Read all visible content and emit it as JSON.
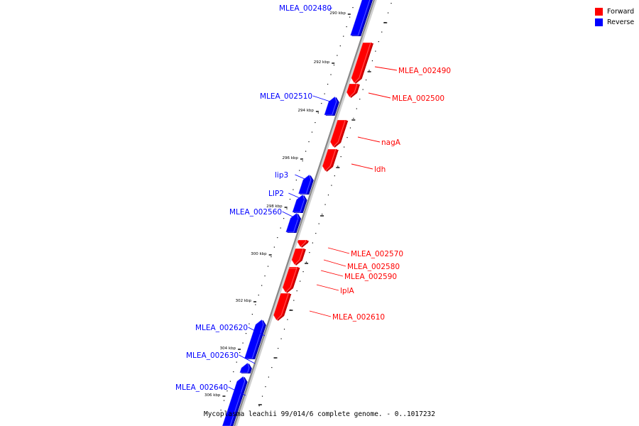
{
  "caption": "Mycoplasma leachii 99/014/6 complete genome. - 0..1017232",
  "colors": {
    "forward": "#ff0000",
    "reverse": "#0000ff",
    "backbone": "#888888"
  },
  "legend": [
    {
      "label": "Forward",
      "color": "#ff0000"
    },
    {
      "label": "Reverse",
      "color": "#0000ff"
    }
  ],
  "ticks": [
    {
      "label": "290 kbp"
    },
    {
      "label": "292 kbp"
    },
    {
      "label": "294 kbp"
    },
    {
      "label": "296 kbp"
    },
    {
      "label": "298 kbp"
    },
    {
      "label": "300 kbp"
    },
    {
      "label": "302 kbp"
    },
    {
      "label": "304 kbp"
    },
    {
      "label": "306 kbp"
    }
  ],
  "genes": [
    {
      "name": "MLEA_002480",
      "strand": "reverse"
    },
    {
      "name": "MLEA_002490",
      "strand": "forward"
    },
    {
      "name": "MLEA_002500",
      "strand": "forward"
    },
    {
      "name": "MLEA_002510",
      "strand": "reverse"
    },
    {
      "name": "nagA",
      "strand": "forward"
    },
    {
      "name": "ldh",
      "strand": "forward"
    },
    {
      "name": "lip3",
      "strand": "reverse"
    },
    {
      "name": "LIP2",
      "strand": "reverse"
    },
    {
      "name": "MLEA_002560",
      "strand": "reverse"
    },
    {
      "name": "MLEA_002570",
      "strand": "forward"
    },
    {
      "name": "MLEA_002580",
      "strand": "forward"
    },
    {
      "name": "MLEA_002590",
      "strand": "forward"
    },
    {
      "name": "lplA",
      "strand": "forward"
    },
    {
      "name": "MLEA_002610",
      "strand": "forward"
    },
    {
      "name": "MLEA_002620",
      "strand": "reverse"
    },
    {
      "name": "MLEA_002630",
      "strand": "reverse"
    },
    {
      "name": "MLEA_002640",
      "strand": "reverse"
    }
  ]
}
